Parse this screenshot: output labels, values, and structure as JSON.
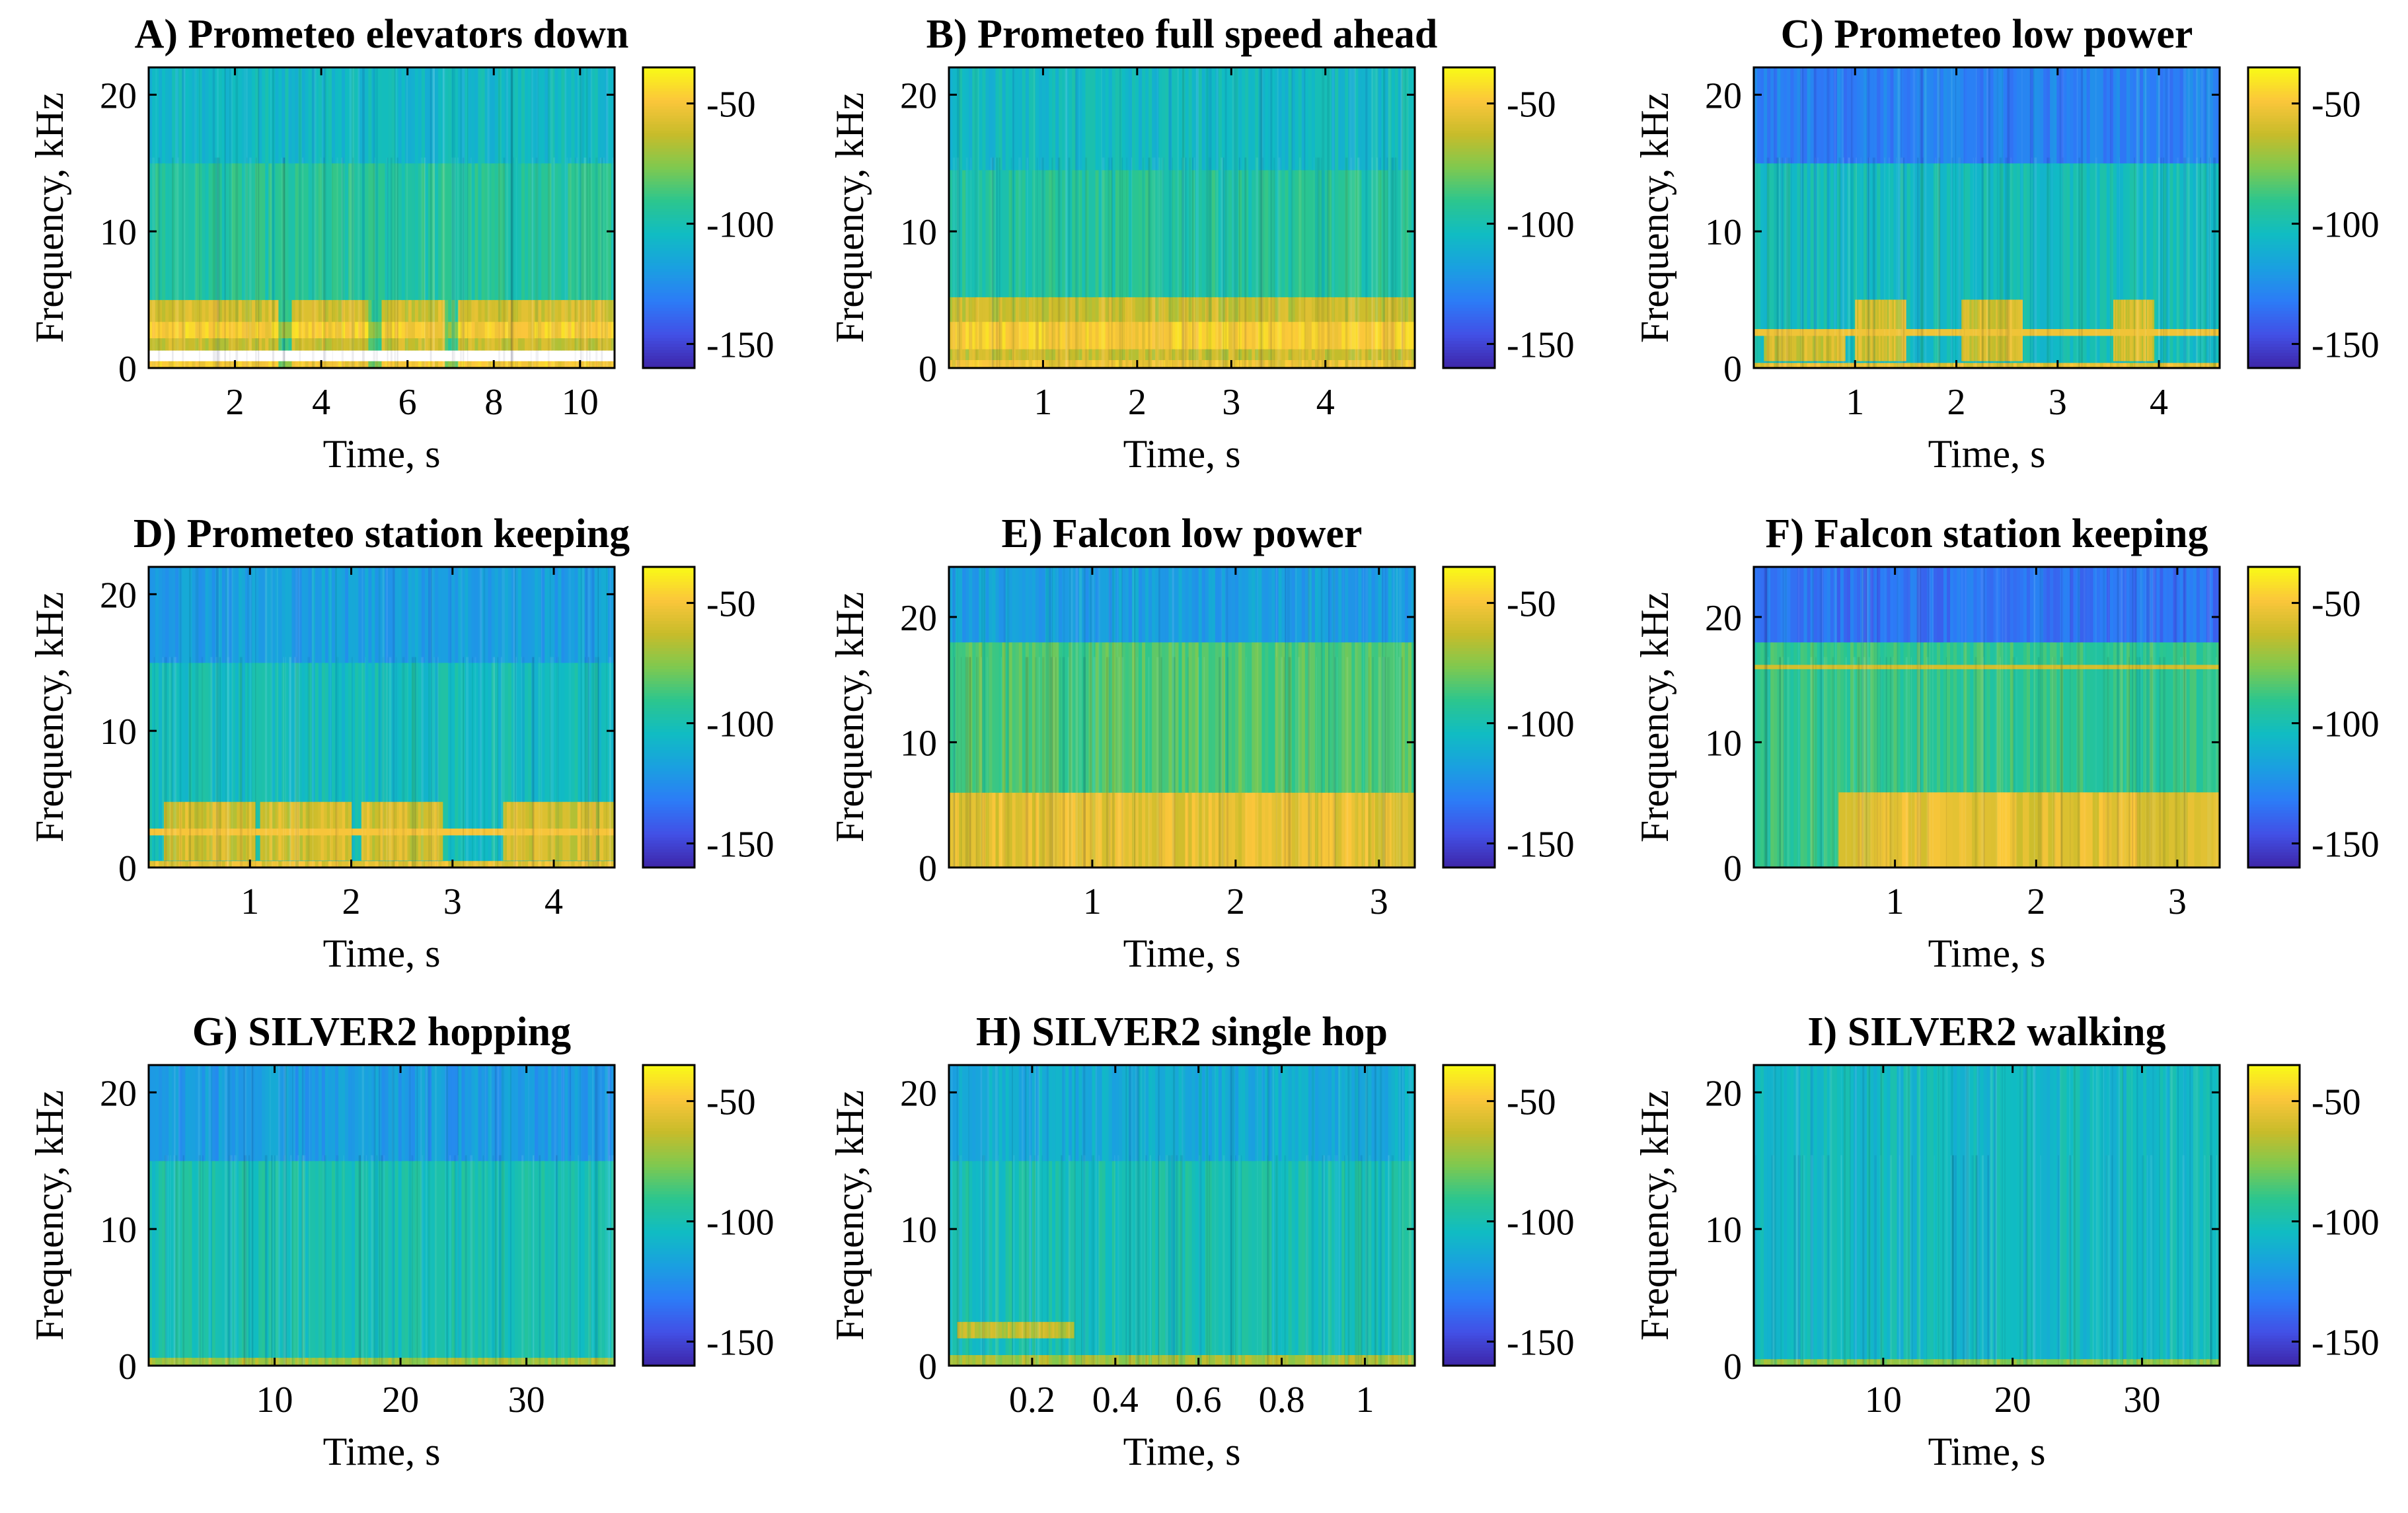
{
  "colormap": [
    "#3e26a8",
    "#4250e6",
    "#2c7cf7",
    "#1aa0e0",
    "#10bcc3",
    "#2cc68e",
    "#7fc94f",
    "#c8bc2a",
    "#fbc63b",
    "#f9fb15"
  ],
  "chart_data": [
    {
      "type": "heatmap",
      "title": "A) Prometeo elevators down",
      "xlabel": "Time, s",
      "ylabel": "Frequency, kHz",
      "xlim": [
        0,
        10.8
      ],
      "ylim": [
        0,
        22
      ],
      "xticks": [
        2,
        4,
        6,
        8,
        10
      ],
      "yticks": [
        0,
        10,
        20
      ],
      "colorbar_ticks": [
        -50,
        -100,
        -150
      ],
      "clim": [
        -160,
        -35
      ],
      "bands": [
        [
          0,
          0.5,
          -50
        ],
        [
          1.3,
          2.2,
          -62
        ],
        [
          2.2,
          3.4,
          -48
        ],
        [
          3.4,
          5.0,
          -60
        ],
        [
          5.0,
          15.0,
          -95
        ],
        [
          15.0,
          22.0,
          -105
        ]
      ],
      "gaps": [
        [
          3.0,
          3.3
        ],
        [
          5.1,
          5.4
        ],
        [
          6.9,
          7.2
        ]
      ]
    },
    {
      "type": "heatmap",
      "title": "B) Prometeo full speed ahead",
      "xlabel": "Time, s",
      "ylabel": "Frequency, kHz",
      "xlim": [
        0,
        4.95
      ],
      "ylim": [
        0,
        22
      ],
      "xticks": [
        1,
        2,
        3,
        4
      ],
      "yticks": [
        0,
        10,
        20
      ],
      "colorbar_ticks": [
        -50,
        -100,
        -150
      ],
      "clim": [
        -160,
        -35
      ],
      "bands": [
        [
          0,
          0.6,
          -52
        ],
        [
          0.6,
          1.4,
          -62
        ],
        [
          1.4,
          3.4,
          -48
        ],
        [
          3.4,
          5.2,
          -62
        ],
        [
          5.2,
          14.5,
          -95
        ],
        [
          14.5,
          22.0,
          -105
        ]
      ],
      "gaps": []
    },
    {
      "type": "heatmap",
      "title": "C) Prometeo low power",
      "xlabel": "Time, s",
      "ylabel": "Frequency, kHz",
      "xlim": [
        0,
        4.6
      ],
      "ylim": [
        0,
        22
      ],
      "xticks": [
        1,
        2,
        3,
        4
      ],
      "yticks": [
        0,
        10,
        20
      ],
      "colorbar_ticks": [
        -50,
        -100,
        -150
      ],
      "clim": [
        -160,
        -35
      ],
      "bands": [
        [
          0,
          0.4,
          -55
        ],
        [
          0.4,
          15.0,
          -100
        ],
        [
          15.0,
          22.0,
          -130
        ]
      ],
      "bursts": [
        [
          0.5,
          2.8,
          0.4,
          2.5
        ],
        [
          1.25,
          5.0,
          0.25,
          4.5
        ],
        [
          2.35,
          5.0,
          0.3,
          5.5
        ],
        [
          3.75,
          5.0,
          0.2,
          4.5
        ]
      ],
      "lines": [
        [
          2.6,
          0.5,
          -52
        ]
      ]
    },
    {
      "type": "heatmap",
      "title": "D) Prometeo station keeping",
      "xlabel": "Time, s",
      "ylabel": "Frequency, kHz",
      "xlim": [
        0,
        4.6
      ],
      "ylim": [
        0,
        22
      ],
      "xticks": [
        1,
        2,
        3,
        4
      ],
      "yticks": [
        0,
        10,
        20
      ],
      "colorbar_ticks": [
        -50,
        -100,
        -150
      ],
      "clim": [
        -160,
        -35
      ],
      "bands": [
        [
          0,
          0.5,
          -55
        ],
        [
          0.5,
          15.0,
          -100
        ],
        [
          15.0,
          22.0,
          -118
        ]
      ],
      "bursts": [
        [
          0.6,
          4.8,
          0.45,
          3.5
        ],
        [
          1.55,
          4.8,
          0.45,
          3.5
        ],
        [
          2.5,
          4.8,
          0.4,
          3.5
        ],
        [
          4.05,
          4.8,
          0.55,
          3.5
        ]
      ],
      "lines": [
        [
          2.6,
          0.5,
          -50
        ]
      ]
    },
    {
      "type": "heatmap",
      "title": "E) Falcon low power",
      "xlabel": "Time, s",
      "ylabel": "Frequency, kHz",
      "xlim": [
        0,
        3.25
      ],
      "ylim": [
        0,
        24
      ],
      "xticks": [
        1,
        2,
        3
      ],
      "yticks": [
        0,
        10,
        20
      ],
      "colorbar_ticks": [
        -50,
        -100,
        -150
      ],
      "clim": [
        -160,
        -35
      ],
      "bands": [
        [
          0,
          6.0,
          -55
        ],
        [
          6.0,
          18.0,
          -85
        ],
        [
          18.0,
          24.0,
          -118
        ]
      ],
      "gaps": []
    },
    {
      "type": "heatmap",
      "title": "F) Falcon station keeping",
      "xlabel": "Time, s",
      "ylabel": "Frequency, kHz",
      "xlim": [
        0,
        3.3
      ],
      "ylim": [
        0,
        24
      ],
      "xticks": [
        1,
        2,
        3
      ],
      "yticks": [
        0,
        10,
        20
      ],
      "colorbar_ticks": [
        -50,
        -100,
        -150
      ],
      "clim": [
        -160,
        -35
      ],
      "bands": [
        [
          0,
          18.0,
          -90
        ],
        [
          18.0,
          24.0,
          -135
        ]
      ],
      "regions": [
        [
          0.6,
          3.3,
          0,
          6.0,
          -55
        ]
      ],
      "lines": [
        [
          16.0,
          0.35,
          -60
        ]
      ]
    },
    {
      "type": "heatmap",
      "title": "G) SILVER2 hopping",
      "xlabel": "Time, s",
      "ylabel": "Frequency, kHz",
      "xlim": [
        0,
        37
      ],
      "ylim": [
        0,
        22
      ],
      "xticks": [
        10,
        20,
        30
      ],
      "yticks": [
        0,
        10,
        20
      ],
      "colorbar_ticks": [
        -50,
        -100,
        -150
      ],
      "clim": [
        -160,
        -35
      ],
      "bands": [
        [
          0,
          0.6,
          -70
        ],
        [
          0.6,
          15.0,
          -100
        ],
        [
          15.0,
          22.0,
          -120
        ]
      ],
      "gaps": []
    },
    {
      "type": "heatmap",
      "title": "H) SILVER2 single hop",
      "xlabel": "Time, s",
      "ylabel": "Frequency, kHz",
      "xlim": [
        0,
        1.12
      ],
      "ylim": [
        0,
        22
      ],
      "xticks": [
        0.2,
        0.4,
        0.6,
        0.8,
        1
      ],
      "yticks": [
        0,
        10,
        20
      ],
      "colorbar_ticks": [
        -50,
        -100,
        -150
      ],
      "clim": [
        -160,
        -35
      ],
      "bands": [
        [
          0,
          0.8,
          -70
        ],
        [
          0.8,
          15.0,
          -100
        ],
        [
          15.0,
          22.0,
          -112
        ]
      ],
      "regions": [
        [
          0.02,
          0.3,
          2.0,
          3.2,
          -65
        ]
      ],
      "gaps": []
    },
    {
      "type": "heatmap",
      "title": "I) SILVER2 walking",
      "xlabel": "Time, s",
      "ylabel": "Frequency, kHz",
      "xlim": [
        0,
        36
      ],
      "ylim": [
        0,
        22
      ],
      "xticks": [
        10,
        20,
        30
      ],
      "yticks": [
        0,
        10,
        20
      ],
      "colorbar_ticks": [
        -50,
        -100,
        -150
      ],
      "clim": [
        -160,
        -35
      ],
      "bands": [
        [
          0,
          0.5,
          -75
        ],
        [
          0.5,
          22.0,
          -105
        ]
      ],
      "gaps": []
    }
  ]
}
